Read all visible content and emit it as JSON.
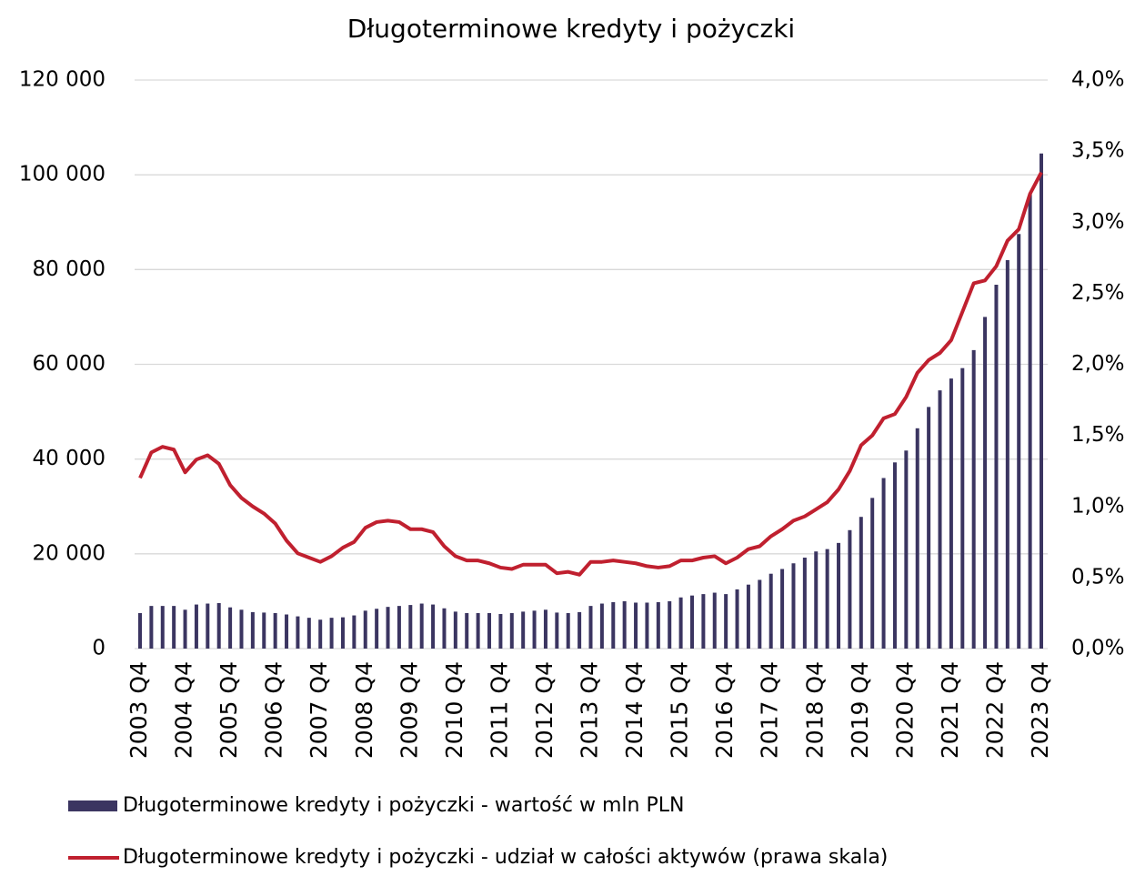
{
  "chart_data": {
    "type": "bar_line",
    "title": "Długoterminowe kredyty i pożyczki",
    "categories": [
      "2003 Q4",
      null,
      null,
      null,
      "2004 Q4",
      null,
      null,
      null,
      "2005 Q4",
      null,
      null,
      null,
      "2006 Q4",
      null,
      null,
      null,
      "2007 Q4",
      null,
      null,
      null,
      "2008 Q4",
      null,
      null,
      null,
      "2009 Q4",
      null,
      null,
      null,
      "2010 Q4",
      null,
      null,
      null,
      "2011 Q4",
      null,
      null,
      null,
      "2012 Q4",
      null,
      null,
      null,
      "2013 Q4",
      null,
      null,
      null,
      "2014 Q4",
      null,
      null,
      null,
      "2015 Q4",
      null,
      null,
      null,
      "2016 Q4",
      null,
      null,
      null,
      "2017 Q4",
      null,
      null,
      null,
      "2018 Q4",
      null,
      null,
      null,
      "2019 Q4",
      null,
      null,
      null,
      "2020 Q4",
      null,
      null,
      null,
      "2021 Q4",
      null,
      null,
      null,
      "2022 Q4",
      null,
      null,
      null,
      "2023 Q4"
    ],
    "series": [
      {
        "name": "Długoterminowe kredyty i pożyczki - wartość w mln PLN",
        "type": "bar",
        "color": "#3b3561",
        "values": [
          7500,
          9000,
          9000,
          9000,
          8200,
          9300,
          9500,
          9600,
          8700,
          8200,
          7700,
          7600,
          7500,
          7200,
          6800,
          6500,
          6100,
          6500,
          6600,
          7000,
          8000,
          8400,
          8800,
          9000,
          9200,
          9500,
          9300,
          8500,
          7800,
          7500,
          7500,
          7500,
          7300,
          7500,
          7800,
          8000,
          8200,
          7600,
          7500,
          7700,
          9000,
          9500,
          9800,
          10000,
          9700,
          9700,
          9800,
          10000,
          10800,
          11200,
          11500,
          11800,
          11500,
          12500,
          13500,
          14500,
          15800,
          16800,
          18000,
          19200,
          20500,
          21000,
          22300,
          25000,
          27800,
          31800,
          36000,
          39300,
          41800,
          46500,
          51000,
          54500,
          57000,
          59200,
          63000,
          70000,
          76800,
          82000,
          87500,
          96000,
          104500
        ]
      },
      {
        "name": "Długoterminowe kredyty i pożyczki - udział w całości aktywów (prawa skala)",
        "type": "line",
        "axis": "y2",
        "color": "#c0202f",
        "values": [
          1.2,
          1.38,
          1.42,
          1.4,
          1.24,
          1.33,
          1.36,
          1.3,
          1.15,
          1.06,
          1.0,
          0.95,
          0.88,
          0.76,
          0.67,
          0.64,
          0.61,
          0.65,
          0.71,
          0.75,
          0.85,
          0.89,
          0.9,
          0.89,
          0.84,
          0.84,
          0.82,
          0.72,
          0.65,
          0.62,
          0.62,
          0.6,
          0.57,
          0.56,
          0.59,
          0.59,
          0.59,
          0.53,
          0.54,
          0.52,
          0.61,
          0.61,
          0.62,
          0.61,
          0.6,
          0.58,
          0.57,
          0.58,
          0.62,
          0.62,
          0.64,
          0.65,
          0.6,
          0.64,
          0.7,
          0.72,
          0.79,
          0.84,
          0.9,
          0.93,
          0.98,
          1.03,
          1.12,
          1.25,
          1.43,
          1.5,
          1.62,
          1.65,
          1.77,
          1.94,
          2.03,
          2.08,
          2.17,
          2.37,
          2.57,
          2.59,
          2.69,
          2.87,
          2.95,
          3.2,
          3.35
        ]
      }
    ],
    "ylim": [
      0,
      120000
    ],
    "yticks": [
      0,
      {
        "value": 20000,
        "label": "20 000"
      },
      {
        "value": 40000,
        "label": "40 000"
      },
      {
        "value": 60000,
        "label": "60 000"
      },
      {
        "value": 80000,
        "label": "80 000"
      },
      {
        "value": 100000,
        "label": "100 000"
      },
      {
        "value": 120000,
        "label": "120 000"
      }
    ],
    "y2lim": [
      0,
      4
    ],
    "y2ticks": [
      {
        "value": 0,
        "label": "0,0%"
      },
      {
        "value": 0.5,
        "label": "0,5%"
      },
      {
        "value": 1,
        "label": "1,0%"
      },
      {
        "value": 1.5,
        "label": "1,5%"
      },
      {
        "value": 2,
        "label": "2,0%"
      },
      {
        "value": 2.5,
        "label": "2,5%"
      },
      {
        "value": 3,
        "label": "3,0%"
      },
      {
        "value": 3.5,
        "label": "3,5%"
      },
      {
        "value": 4,
        "label": "4,0%"
      }
    ],
    "grid": true,
    "legend": "bottom"
  }
}
